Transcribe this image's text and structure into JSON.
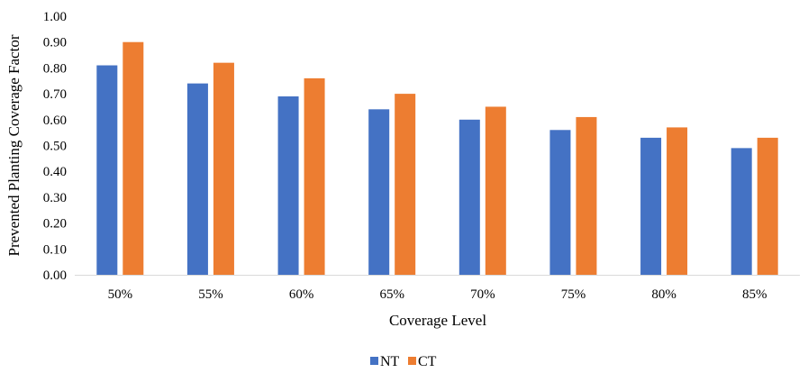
{
  "chart_data": {
    "type": "bar",
    "title": "",
    "xlabel": "Coverage Level",
    "ylabel": "Prevented Planting Coverage Factor",
    "categories": [
      "50%",
      "55%",
      "60%",
      "65%",
      "70%",
      "75%",
      "80%",
      "85%"
    ],
    "series": [
      {
        "name": "NT",
        "color": "#4472C4",
        "values": [
          0.81,
          0.74,
          0.69,
          0.64,
          0.6,
          0.56,
          0.53,
          0.49
        ]
      },
      {
        "name": "CT",
        "color": "#ED7D31",
        "values": [
          0.9,
          0.82,
          0.76,
          0.7,
          0.65,
          0.61,
          0.57,
          0.53
        ]
      }
    ],
    "ylim": [
      0,
      1.0
    ],
    "yticks": [
      "0.00",
      "0.10",
      "0.20",
      "0.30",
      "0.40",
      "0.50",
      "0.60",
      "0.70",
      "0.80",
      "0.90",
      "1.00"
    ],
    "grid": false,
    "legend": "bottom-center"
  }
}
